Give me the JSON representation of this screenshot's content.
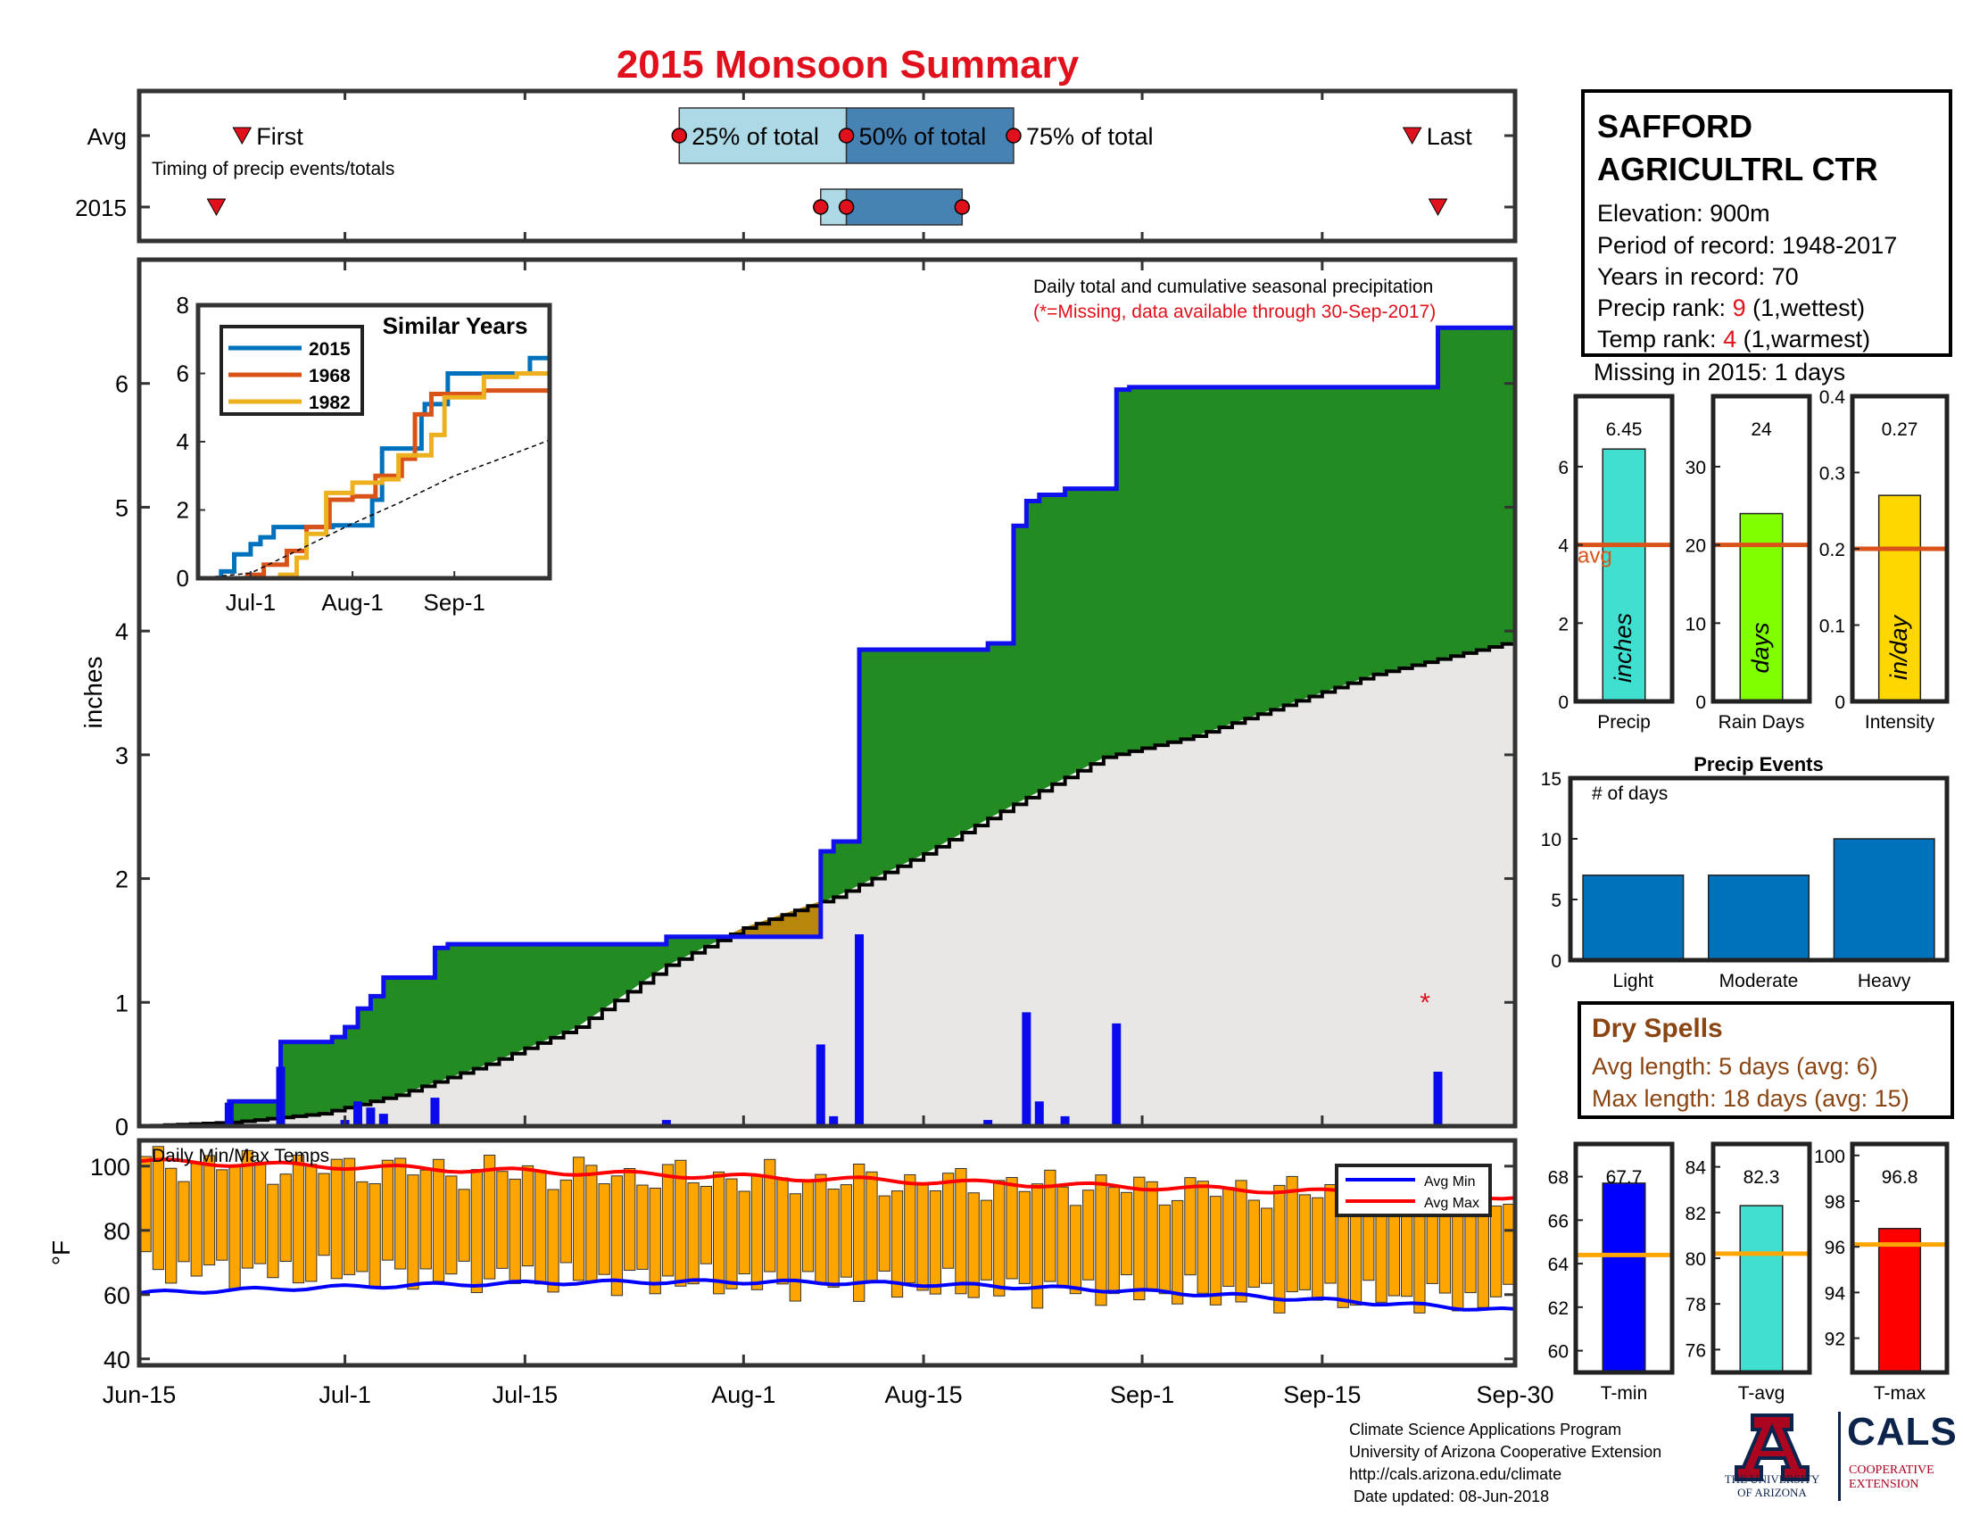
{
  "title": "2015 Monsoon Summary",
  "station": {
    "name_line1": "SAFFORD",
    "name_line2": "AGRICULTRL CTR",
    "elevation": "Elevation: 900m",
    "period": "Period of record: 1948-2017",
    "years": "Years in record: 70",
    "precip_rank_label": "Precip rank: ",
    "precip_rank_value": "9",
    "precip_rank_note": " (1,wettest)",
    "temp_rank_label": "Temp rank: ",
    "temp_rank_value": "4",
    "temp_rank_note": " (1,warmest)",
    "missing": "Missing in 2015: 1 days"
  },
  "dry_spells": {
    "title": "Dry Spells",
    "avg": "Avg length: 5 days (avg: 6)",
    "max": "Max length: 18 days (avg: 15)"
  },
  "footer": {
    "line1": "Climate Science Applications Program",
    "line2": "University of Arizona Cooperative Extension",
    "line3": "http://cals.arizona.edu/climate",
    "line4": " Date updated: 08-Jun-2018"
  },
  "logos": {
    "ua_line1": "THE UNIVERSITY",
    "ua_line2": "OF ARIZONA",
    "cals": "CALS",
    "cals_sub1": "COOPERATIVE",
    "cals_sub2": "EXTENSION"
  },
  "colors": {
    "title_red": "#e0101c",
    "green": "#228b22",
    "blue_line": "#1010ee",
    "bar_blue": "#0a0aee",
    "orange_bar": "#ffa500",
    "brown_dry": "#8b4513",
    "light_blue": "#add8e6",
    "steel_blue": "#4682b4"
  },
  "chart_data": [
    {
      "id": "timing",
      "type": "bar",
      "note_label": "Timing of precip events/totals",
      "row_labels": [
        "Avg",
        "2015"
      ],
      "avg": {
        "first": "2015-06-23",
        "p25": "2015-07-27",
        "p50": "2015-08-09",
        "p75": "2015-08-22",
        "last": "2015-09-22",
        "first_label": "First",
        "last_label": "Last",
        "p25_label": "25% of total",
        "p50_label": "50% of total",
        "p75_label": "75% of total"
      },
      "y2015": {
        "first": "2015-06-21",
        "p25": "2015-08-07",
        "p50": "2015-08-09",
        "p75": "2015-08-18",
        "last": "2015-09-24"
      }
    },
    {
      "id": "precip",
      "type": "area",
      "annotation1": "Daily total and cumulative seasonal precipitation",
      "annotation2": "(*=Missing, data available through 30-Sep-2017)",
      "ylabel": "inches",
      "ylim": [
        0,
        7
      ],
      "yticks": [
        0,
        1,
        2,
        3,
        4,
        5,
        6
      ],
      "xlim": [
        "2015-06-15",
        "2015-09-30"
      ],
      "xtick_labels": [
        "Jun-15",
        "Jul-1",
        "Jul-15",
        "Aug-1",
        "Aug-15",
        "Sep-1",
        "Sep-15",
        "Sep-30"
      ],
      "xtick_dates": [
        "2015-06-15",
        "2015-07-01",
        "2015-07-15",
        "2015-08-01",
        "2015-08-15",
        "2015-09-01",
        "2015-09-15",
        "2015-09-30"
      ],
      "daily": [
        {
          "date": "2015-06-22",
          "in": 0.19
        },
        {
          "date": "2015-06-26",
          "in": 0.48
        },
        {
          "date": "2015-07-01",
          "in": 0.05
        },
        {
          "date": "2015-07-02",
          "in": 0.2
        },
        {
          "date": "2015-07-03",
          "in": 0.15
        },
        {
          "date": "2015-07-04",
          "in": 0.1
        },
        {
          "date": "2015-07-08",
          "in": 0.23
        },
        {
          "date": "2015-07-26",
          "in": 0.05
        },
        {
          "date": "2015-08-07",
          "in": 0.66
        },
        {
          "date": "2015-08-08",
          "in": 0.08
        },
        {
          "date": "2015-08-10",
          "in": 1.55
        },
        {
          "date": "2015-08-20",
          "in": 0.05
        },
        {
          "date": "2015-08-23",
          "in": 0.92
        },
        {
          "date": "2015-08-24",
          "in": 0.2
        },
        {
          "date": "2015-08-26",
          "in": 0.08
        },
        {
          "date": "2015-08-30",
          "in": 0.83
        },
        {
          "date": "2015-09-24",
          "in": 0.44
        }
      ],
      "missing_dates": [
        "2015-09-23"
      ],
      "cumulative_2015": [
        [
          "2015-06-15",
          0
        ],
        [
          "2015-06-22",
          0.2
        ],
        [
          "2015-06-26",
          0.68
        ],
        [
          "2015-06-30",
          0.72
        ],
        [
          "2015-07-01",
          0.8
        ],
        [
          "2015-07-02",
          0.95
        ],
        [
          "2015-07-03",
          1.05
        ],
        [
          "2015-07-04",
          1.2
        ],
        [
          "2015-07-08",
          1.44
        ],
        [
          "2015-07-09",
          1.47
        ],
        [
          "2015-07-26",
          1.53
        ],
        [
          "2015-08-07",
          2.22
        ],
        [
          "2015-08-08",
          2.3
        ],
        [
          "2015-08-10",
          3.85
        ],
        [
          "2015-08-20",
          3.9
        ],
        [
          "2015-08-22",
          4.85
        ],
        [
          "2015-08-23",
          5.05
        ],
        [
          "2015-08-24",
          5.1
        ],
        [
          "2015-08-26",
          5.15
        ],
        [
          "2015-08-30",
          5.95
        ],
        [
          "2015-08-31",
          5.97
        ],
        [
          "2015-09-24",
          6.45
        ],
        [
          "2015-09-30",
          6.45
        ]
      ],
      "cumulative_avg": [
        [
          "2015-06-15",
          0
        ],
        [
          "2015-06-22",
          0.03
        ],
        [
          "2015-06-29",
          0.1
        ],
        [
          "2015-07-05",
          0.25
        ],
        [
          "2015-07-12",
          0.5
        ],
        [
          "2015-07-19",
          0.8
        ],
        [
          "2015-07-26",
          1.3
        ],
        [
          "2015-08-01",
          1.6
        ],
        [
          "2015-08-08",
          1.85
        ],
        [
          "2015-08-15",
          2.2
        ],
        [
          "2015-08-22",
          2.6
        ],
        [
          "2015-08-29",
          2.98
        ],
        [
          "2015-09-05",
          3.15
        ],
        [
          "2015-09-12",
          3.4
        ],
        [
          "2015-09-19",
          3.65
        ],
        [
          "2015-09-30",
          3.92
        ]
      ]
    },
    {
      "id": "similar_years",
      "type": "line",
      "title": "Similar Years",
      "ylim": [
        0,
        8
      ],
      "yticks": [
        0,
        2,
        4,
        6,
        8
      ],
      "xtick_labels": [
        "Jul-1",
        "Aug-1",
        "Sep-1"
      ],
      "xtick_dates": [
        "2015-07-01",
        "2015-08-01",
        "2015-09-01"
      ],
      "xlim": [
        "2015-06-15",
        "2015-09-30"
      ],
      "series": [
        {
          "name": "2015",
          "color": "#0072bd",
          "points": [
            [
              "2015-06-15",
              0
            ],
            [
              "2015-06-22",
              0.2
            ],
            [
              "2015-06-26",
              0.7
            ],
            [
              "2015-07-01",
              1
            ],
            [
              "2015-07-04",
              1.2
            ],
            [
              "2015-07-08",
              1.5
            ],
            [
              "2015-07-26",
              1.55
            ],
            [
              "2015-08-07",
              2.3
            ],
            [
              "2015-08-10",
              3.8
            ],
            [
              "2015-08-22",
              4.8
            ],
            [
              "2015-08-23",
              5.1
            ],
            [
              "2015-08-30",
              6
            ],
            [
              "2015-09-24",
              6.45
            ],
            [
              "2015-09-30",
              6.45
            ]
          ]
        },
        {
          "name": "1968",
          "color": "#d95319",
          "points": [
            [
              "2015-06-15",
              0
            ],
            [
              "2015-06-30",
              0.1
            ],
            [
              "2015-07-05",
              0.4
            ],
            [
              "2015-07-12",
              0.8
            ],
            [
              "2015-07-18",
              1.5
            ],
            [
              "2015-07-25",
              2.3
            ],
            [
              "2015-08-01",
              2.4
            ],
            [
              "2015-08-08",
              3
            ],
            [
              "2015-08-16",
              3.5
            ],
            [
              "2015-08-20",
              4.8
            ],
            [
              "2015-08-25",
              5.4
            ],
            [
              "2015-09-10",
              5.5
            ],
            [
              "2015-09-30",
              5.5
            ]
          ]
        },
        {
          "name": "1982",
          "color": "#edb120",
          "points": [
            [
              "2015-06-15",
              0
            ],
            [
              "2015-07-10",
              0.1
            ],
            [
              "2015-07-15",
              0.6
            ],
            [
              "2015-07-18",
              1.3
            ],
            [
              "2015-07-24",
              2.5
            ],
            [
              "2015-08-01",
              2.8
            ],
            [
              "2015-08-10",
              2.9
            ],
            [
              "2015-08-15",
              3.6
            ],
            [
              "2015-08-25",
              4.2
            ],
            [
              "2015-08-29",
              5.3
            ],
            [
              "2015-09-10",
              5.9
            ],
            [
              "2015-09-20",
              6
            ],
            [
              "2015-09-30",
              6
            ]
          ]
        },
        {
          "name": "avg",
          "color": "#000000",
          "points": [
            [
              "2015-06-15",
              0
            ],
            [
              "2015-07-01",
              0.15
            ],
            [
              "2015-07-15",
              0.8
            ],
            [
              "2015-08-01",
              1.6
            ],
            [
              "2015-08-15",
              2.2
            ],
            [
              "2015-09-01",
              3
            ],
            [
              "2015-09-15",
              3.5
            ],
            [
              "2015-09-30",
              4.05
            ]
          ]
        }
      ]
    },
    {
      "id": "temps",
      "type": "bar",
      "label": "Daily Min/Max Temps",
      "ylabel": "°F",
      "ylim": [
        38,
        108
      ],
      "yticks": [
        40,
        60,
        80,
        100
      ],
      "legend": [
        "Avg Min",
        "Avg Max"
      ],
      "avg_max_start": 101.5,
      "avg_max_end": 90.5,
      "avg_min_start": 60.5,
      "avg_min_end": 55
    },
    {
      "id": "summary_bars",
      "type": "bar",
      "panels": [
        {
          "name": "Precip",
          "value": 6.45,
          "value_label": "6.45",
          "unit_label": "inches",
          "avg": 4.0,
          "avg_label": "avg",
          "ylim": [
            0,
            7.8
          ],
          "yticks": [
            0,
            2,
            4,
            6
          ],
          "color": "#40e0d0"
        },
        {
          "name": "Rain Days",
          "value": 24,
          "value_label": "24",
          "unit_label": "days",
          "avg": 20,
          "ylim": [
            0,
            39
          ],
          "yticks": [
            0,
            10,
            20,
            30
          ],
          "color": "#7fff00"
        },
        {
          "name": "Intensity",
          "value": 0.27,
          "value_label": "0.27",
          "unit_label": "in/day",
          "avg": 0.2,
          "ylim": [
            0,
            0.4
          ],
          "yticks": [
            0,
            0.1,
            0.2,
            0.3,
            0.4
          ],
          "color": "#ffd700"
        }
      ]
    },
    {
      "id": "precip_events",
      "type": "bar",
      "title": "Precip Events",
      "ylabel_inner": "# of days",
      "categories": [
        "Light",
        "Moderate",
        "Heavy"
      ],
      "values": [
        7,
        7,
        10
      ],
      "ylim": [
        0,
        15
      ],
      "yticks": [
        0,
        5,
        10,
        15
      ]
    },
    {
      "id": "temp_bars",
      "type": "bar",
      "panels": [
        {
          "name": "T-min",
          "value": 67.7,
          "value_label": "67.7",
          "avg": 64.4,
          "ylim": [
            59,
            69.5
          ],
          "yticks": [
            60,
            62,
            64,
            66,
            68
          ],
          "color": "#0000ff"
        },
        {
          "name": "T-avg",
          "value": 82.3,
          "value_label": "82.3",
          "avg": 80.2,
          "ylim": [
            75,
            85
          ],
          "yticks": [
            76,
            78,
            80,
            82,
            84
          ],
          "color": "#40e0d0"
        },
        {
          "name": "T-max",
          "value": 96.8,
          "value_label": "96.8",
          "avg": 96.1,
          "ylim": [
            90.5,
            100.5
          ],
          "yticks": [
            92,
            94,
            96,
            98,
            100
          ],
          "color": "#ff0000"
        }
      ]
    }
  ]
}
